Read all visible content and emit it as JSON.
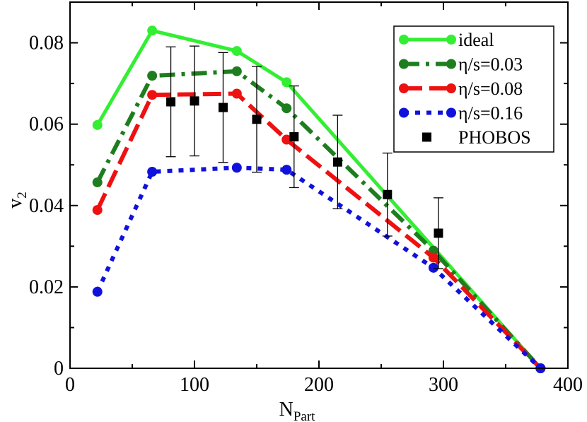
{
  "chart_data": {
    "type": "line",
    "title": "",
    "xlabel": "N",
    "xlabel_sub": "Part",
    "ylabel": "v",
    "ylabel_sub": "2",
    "xlim": [
      0,
      400
    ],
    "ylim": [
      0,
      0.09
    ],
    "xticks": [
      0,
      100,
      200,
      300,
      400
    ],
    "xtick_labels": [
      "0",
      "100",
      "200",
      "300",
      "400"
    ],
    "yticks": [
      0,
      0.02,
      0.04,
      0.06,
      0.08
    ],
    "ytick_labels": [
      "0",
      "0.02",
      "0.04",
      "0.06",
      "0.08"
    ],
    "grid": false,
    "legend_position": "top-right",
    "series": [
      {
        "name": "ideal",
        "color": "#33ee33",
        "style": "solid",
        "x": [
          22,
          66,
          134,
          174,
          378
        ],
        "y": [
          0.0598,
          0.083,
          0.078,
          0.0703,
          0.0
        ]
      },
      {
        "name": "η/s=0.03",
        "color": "#1e7d1e",
        "style": "dashdot",
        "x": [
          22,
          66,
          134,
          174,
          292,
          378
        ],
        "y": [
          0.0457,
          0.0719,
          0.073,
          0.0639,
          0.0289,
          0.0
        ]
      },
      {
        "name": "η/s=0.08",
        "color": "#ee1111",
        "style": "dashed",
        "x": [
          22,
          66,
          134,
          174,
          292,
          378
        ],
        "y": [
          0.0389,
          0.0672,
          0.0675,
          0.0562,
          0.0272,
          0.0
        ]
      },
      {
        "name": "η/s=0.16",
        "color": "#1111dd",
        "style": "dotted",
        "x": [
          22,
          66,
          134,
          174,
          292,
          378
        ],
        "y": [
          0.0188,
          0.0483,
          0.0493,
          0.0488,
          0.0247,
          0.0
        ]
      },
      {
        "name": "PHOBOS",
        "color": "#000000",
        "style": "markers",
        "x": [
          81,
          100,
          123,
          150,
          180,
          215,
          255,
          296
        ],
        "y": [
          0.0655,
          0.0657,
          0.0641,
          0.0612,
          0.0569,
          0.0507,
          0.0427,
          0.0332
        ],
        "err": [
          0.0135,
          0.0135,
          0.0135,
          0.013,
          0.0125,
          0.0115,
          0.0102,
          0.0087
        ]
      }
    ]
  }
}
